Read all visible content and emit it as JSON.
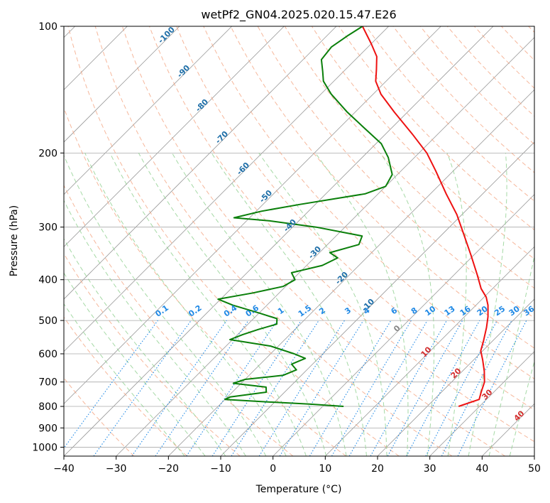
{
  "chart_data": {
    "type": "line",
    "title": "wetPf2_GN04.2025.020.15.47.E26",
    "xlabel": "Temperature (°C)",
    "ylabel": "Pressure (hPa)",
    "x_scale": "skew-T (skew 45°)",
    "y_scale": "log (pressure, inverted)",
    "xlim": [
      -40,
      50
    ],
    "ylim": [
      1050,
      100
    ],
    "x_ticks": [
      "−40",
      "−30",
      "−20",
      "−10",
      "0",
      "10",
      "20",
      "30",
      "40",
      "50"
    ],
    "x_tick_values": [
      -40,
      -30,
      -20,
      -10,
      0,
      10,
      20,
      30,
      40,
      50
    ],
    "y_ticks": [
      "100",
      "200",
      "300",
      "400",
      "500",
      "600",
      "700",
      "800",
      "900",
      "1000"
    ],
    "y_tick_values": [
      100,
      200,
      300,
      400,
      500,
      600,
      700,
      800,
      900,
      1000
    ],
    "grid": true,
    "series": [
      {
        "kind": "temperature",
        "color": "#ee1111",
        "points": [
          {
            "p": 800,
            "t": 26.0
          },
          {
            "p": 770,
            "t": 28.6
          },
          {
            "p": 740,
            "t": 27.6
          },
          {
            "p": 700,
            "t": 26.3
          },
          {
            "p": 660,
            "t": 24.2
          },
          {
            "p": 620,
            "t": 21.7
          },
          {
            "p": 590,
            "t": 19.6
          },
          {
            "p": 560,
            "t": 18.3
          },
          {
            "p": 520,
            "t": 16.3
          },
          {
            "p": 490,
            "t": 14.5
          },
          {
            "p": 460,
            "t": 12.3
          },
          {
            "p": 440,
            "t": 10.4
          },
          {
            "p": 420,
            "t": 7.8
          },
          {
            "p": 390,
            "t": 4.5
          },
          {
            "p": 350,
            "t": -0.5
          },
          {
            "p": 310,
            "t": -6.2
          },
          {
            "p": 280,
            "t": -11.0
          },
          {
            "p": 250,
            "t": -17.0
          },
          {
            "p": 220,
            "t": -23.5
          },
          {
            "p": 200,
            "t": -28.5
          },
          {
            "p": 180,
            "t": -35.0
          },
          {
            "p": 160,
            "t": -42.5
          },
          {
            "p": 145,
            "t": -48.5
          },
          {
            "p": 135,
            "t": -52.0
          },
          {
            "p": 127,
            "t": -54.0
          },
          {
            "p": 118,
            "t": -56.5
          },
          {
            "p": 110,
            "t": -60.0
          },
          {
            "p": 100,
            "t": -65.0
          }
        ]
      },
      {
        "kind": "dewpoint",
        "color": "#0a7f0a",
        "points": [
          {
            "p": 800,
            "t": 4.0
          },
          {
            "p": 790,
            "t": -3.0
          },
          {
            "p": 780,
            "t": -12.0
          },
          {
            "p": 770,
            "t": -20.0
          },
          {
            "p": 760,
            "t": -19.5
          },
          {
            "p": 740,
            "t": -13.5
          },
          {
            "p": 720,
            "t": -14.5
          },
          {
            "p": 705,
            "t": -21.5
          },
          {
            "p": 690,
            "t": -20.0
          },
          {
            "p": 675,
            "t": -13.5
          },
          {
            "p": 655,
            "t": -12.0
          },
          {
            "p": 635,
            "t": -14.0
          },
          {
            "p": 615,
            "t": -12.5
          },
          {
            "p": 600,
            "t": -15.5
          },
          {
            "p": 575,
            "t": -21.5
          },
          {
            "p": 555,
            "t": -30.5
          },
          {
            "p": 540,
            "t": -29.0
          },
          {
            "p": 525,
            "t": -27.0
          },
          {
            "p": 510,
            "t": -24.5
          },
          {
            "p": 495,
            "t": -25.5
          },
          {
            "p": 480,
            "t": -30.0
          },
          {
            "p": 460,
            "t": -36.5
          },
          {
            "p": 445,
            "t": -40.5
          },
          {
            "p": 430,
            "t": -35.0
          },
          {
            "p": 415,
            "t": -30.5
          },
          {
            "p": 400,
            "t": -29.5
          },
          {
            "p": 385,
            "t": -31.5
          },
          {
            "p": 370,
            "t": -27.0
          },
          {
            "p": 355,
            "t": -25.5
          },
          {
            "p": 345,
            "t": -28.0
          },
          {
            "p": 330,
            "t": -24.0
          },
          {
            "p": 315,
            "t": -25.0
          },
          {
            "p": 300,
            "t": -35.5
          },
          {
            "p": 290,
            "t": -45.5
          },
          {
            "p": 285,
            "t": -53.0
          },
          {
            "p": 275,
            "t": -49.0
          },
          {
            "p": 265,
            "t": -43.0
          },
          {
            "p": 250,
            "t": -32.5
          },
          {
            "p": 240,
            "t": -30.0
          },
          {
            "p": 225,
            "t": -31.0
          },
          {
            "p": 205,
            "t": -35.0
          },
          {
            "p": 190,
            "t": -39.0
          },
          {
            "p": 175,
            "t": -45.0
          },
          {
            "p": 160,
            "t": -51.5
          },
          {
            "p": 145,
            "t": -58.0
          },
          {
            "p": 135,
            "t": -62.0
          },
          {
            "p": 128,
            "t": -64.0
          },
          {
            "p": 120,
            "t": -66.5
          },
          {
            "p": 112,
            "t": -67.0
          },
          {
            "p": 105,
            "t": -66.0
          },
          {
            "p": 100,
            "t": -65.0
          }
        ]
      }
    ],
    "dry_adiabat_labels": [
      "-100",
      "-90",
      "-80",
      "-70",
      "-60",
      "-50",
      "-40",
      "-30",
      "-20",
      "-10"
    ],
    "moist_adiabat_labels": [
      "0",
      "10",
      "20",
      "30",
      "40"
    ],
    "mixing_ratio_labels": [
      "0.1",
      "0.2",
      "0.4",
      "0.6",
      "1",
      "1.5",
      "2",
      "3",
      "4",
      "6",
      "8",
      "10",
      "13",
      "16",
      "20",
      "25",
      "30",
      "36"
    ],
    "colors": {
      "temperature": "#ee1111",
      "dewpoint": "#0a7f0a",
      "dry_adiabat": "#f4a582",
      "moist_adiabat": "#8fcf8f",
      "mixing_ratio": "#1e88e5",
      "isotherm": "#999999",
      "isobar": "#aaaaaa"
    }
  }
}
